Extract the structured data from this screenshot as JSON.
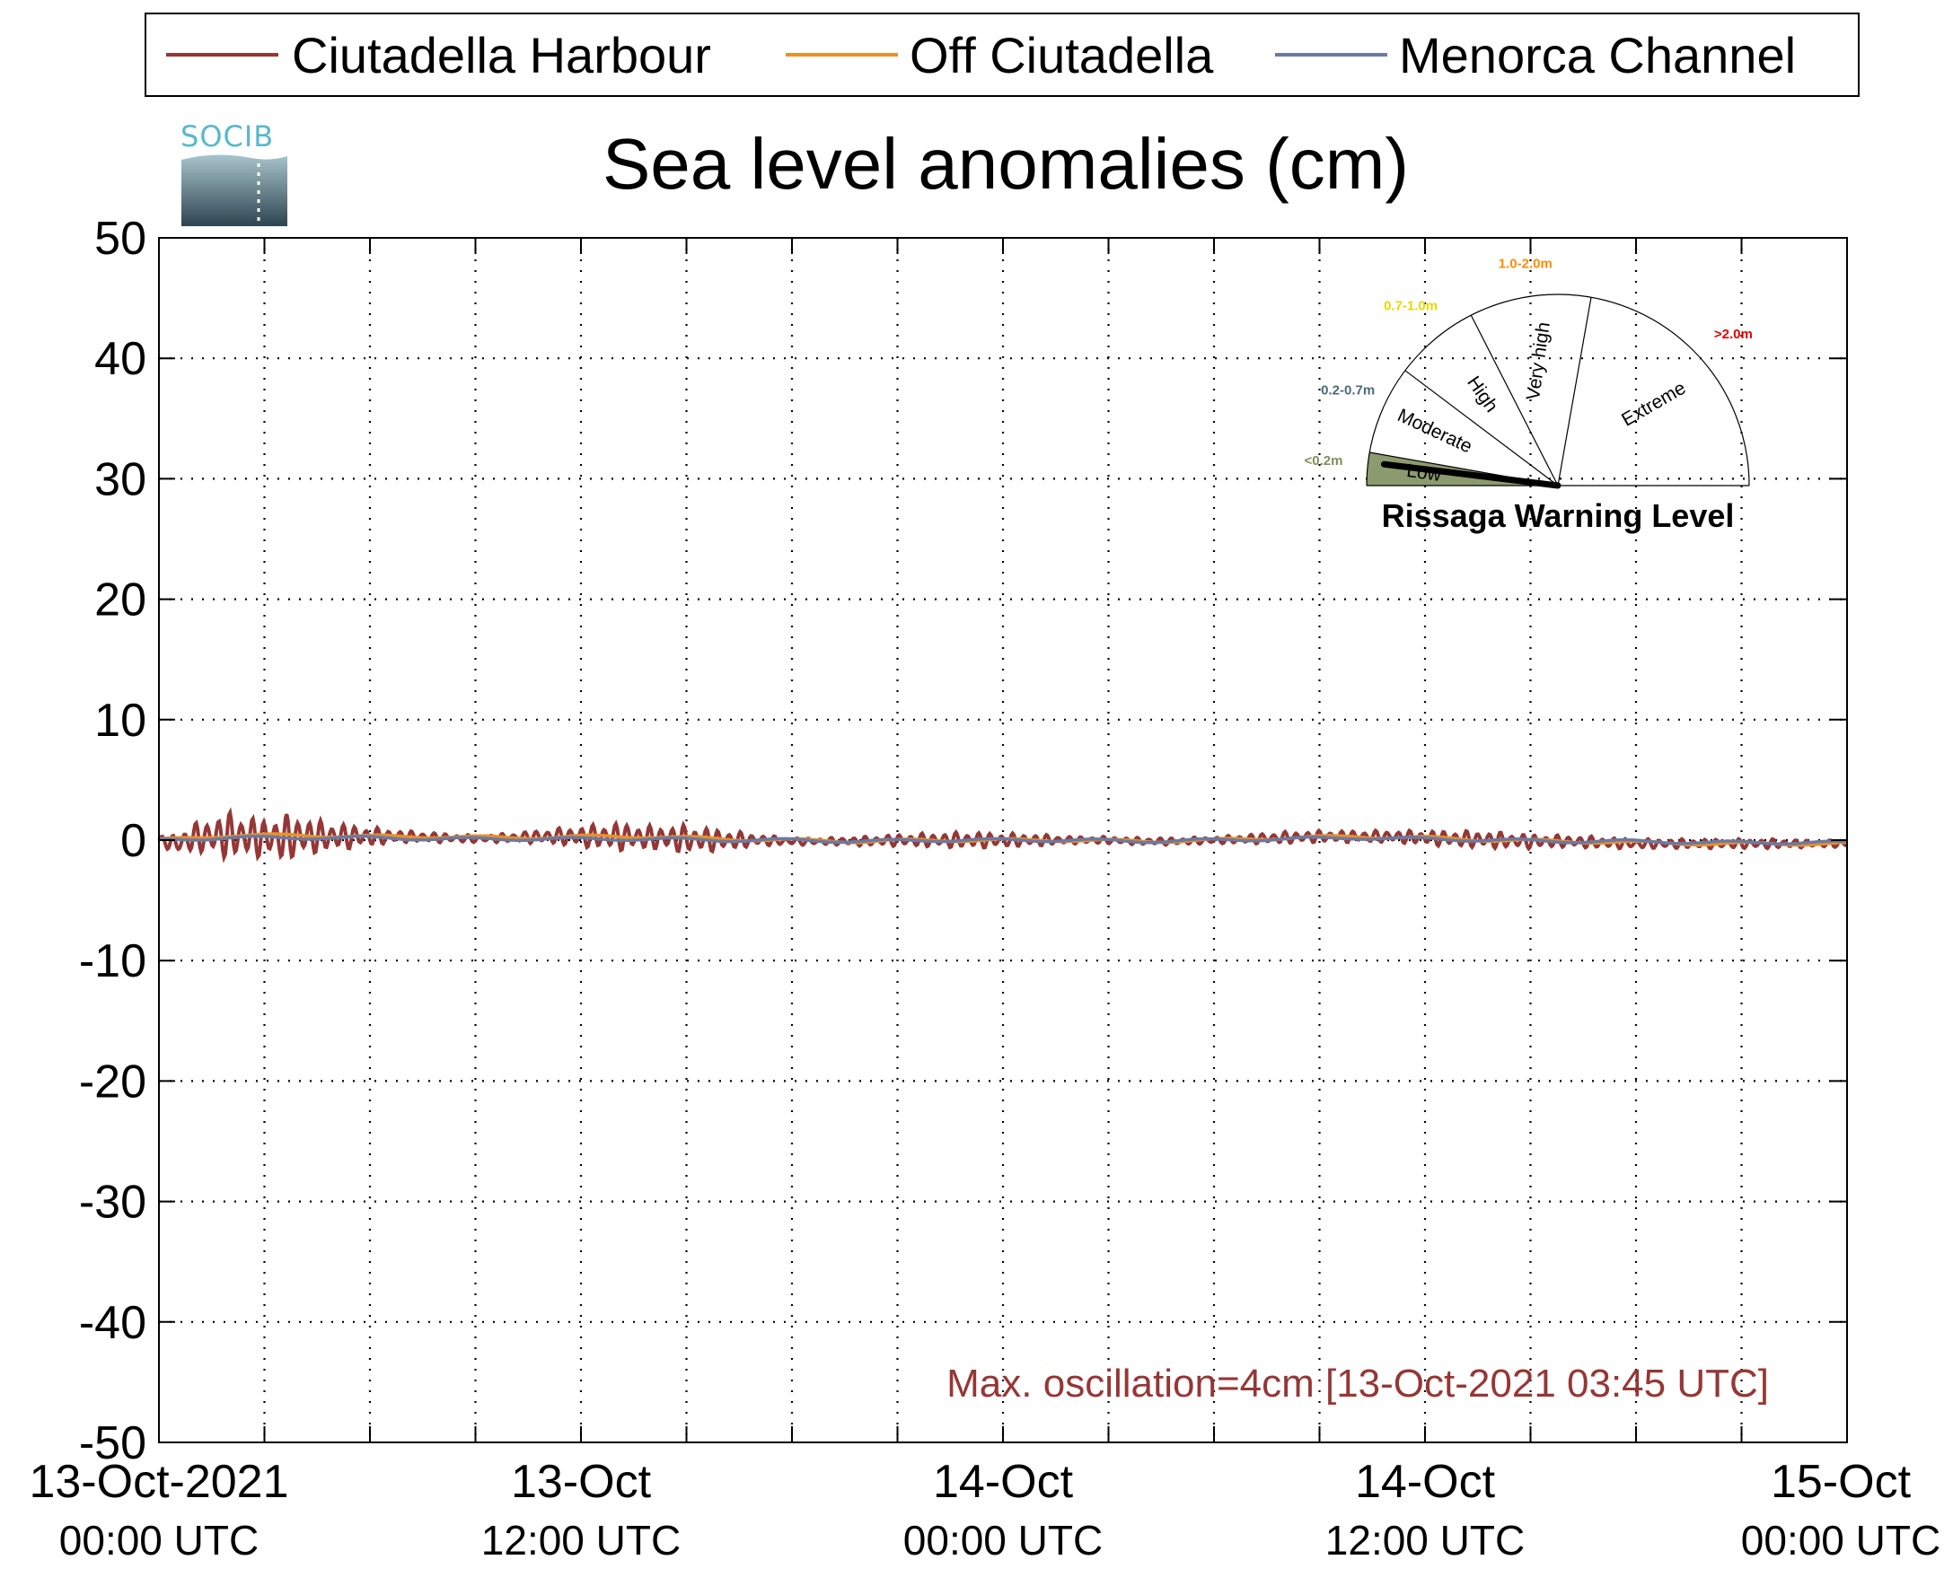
{
  "colors": {
    "harbour": "#953735",
    "off": "#e8912b",
    "channel": "#6b7aa3",
    "annotation": "#953735",
    "gauge_low_fill": "#8c9a70",
    "range_low": "#7f8f5a",
    "range_moderate": "#4a6a7a",
    "range_high": "#e8d800",
    "range_veryhigh": "#ff8c00",
    "range_extreme": "#e00000"
  },
  "logo": {
    "text": "SOCIB"
  },
  "chart_data": {
    "type": "line",
    "title": "Sea level anomalies (cm)",
    "xlabel": "",
    "ylabel": "",
    "ylim": [
      -50,
      50
    ],
    "xlim_hours": [
      0,
      48
    ],
    "grid": true,
    "legend_position": "top",
    "yticks": [
      "50",
      "40",
      "30",
      "20",
      "10",
      "0",
      "-10",
      "-20",
      "-30",
      "-40",
      "-50"
    ],
    "yvalues": [
      50,
      40,
      30,
      20,
      10,
      0,
      -10,
      -20,
      -30,
      -40,
      -50
    ],
    "xticks": [
      {
        "hour": 0,
        "line1": "13-Oct-2021",
        "line2": "00:00 UTC"
      },
      {
        "hour": 12,
        "line1": "13-Oct",
        "line2": "12:00 UTC"
      },
      {
        "hour": 24,
        "line1": "14-Oct",
        "line2": "00:00 UTC"
      },
      {
        "hour": 36,
        "line1": "14-Oct",
        "line2": "12:00 UTC"
      },
      {
        "hour": 48,
        "line1": "15-Oct",
        "line2": "00:00 UTC"
      }
    ],
    "series": [
      {
        "name": "Ciutadella Harbour",
        "hours": [
          0,
          0.5,
          1,
          1.5,
          2,
          2.5,
          3,
          3.5,
          4,
          4.5,
          5,
          5.5,
          6,
          7,
          8,
          9,
          10,
          11,
          12,
          13,
          14,
          15,
          16,
          17,
          18,
          19,
          20,
          21,
          22,
          23,
          24,
          25,
          26,
          27,
          28,
          29,
          30,
          31,
          32,
          33,
          34,
          35,
          36,
          37,
          38,
          39,
          40,
          41,
          42,
          43,
          44,
          45,
          46,
          47,
          48
        ],
        "amplitude": [
          0.3,
          0.9,
          1.2,
          1.6,
          2.0,
          1.8,
          1.6,
          2.0,
          1.8,
          1.4,
          1.2,
          1.0,
          0.8,
          0.5,
          0.4,
          0.3,
          0.4,
          0.6,
          0.9,
          1.2,
          1.0,
          1.2,
          0.9,
          0.5,
          0.3,
          0.3,
          0.4,
          0.5,
          0.6,
          0.7,
          0.6,
          0.5,
          0.3,
          0.3,
          0.3,
          0.3,
          0.3,
          0.4,
          0.5,
          0.5,
          0.5,
          0.5,
          0.6,
          0.7,
          0.7,
          0.6,
          0.5,
          0.5,
          0.4,
          0.4,
          0.4,
          0.4,
          0.4,
          0.3,
          0.3
        ],
        "mean": [
          0,
          -0.3,
          0.2,
          0.3,
          0.4,
          0.3,
          0.2,
          0.2,
          0.3,
          0.3,
          0.3,
          0.3,
          0.3,
          0.3,
          0.2,
          0.1,
          0.2,
          0.3,
          0.3,
          0.3,
          0.2,
          0.1,
          0.0,
          0.0,
          -0.1,
          -0.1,
          -0.1,
          0.0,
          0.0,
          0.0,
          0.0,
          0.0,
          0.0,
          0.0,
          -0.1,
          -0.1,
          0.0,
          0.1,
          0.2,
          0.3,
          0.3,
          0.3,
          0.2,
          0.1,
          0.0,
          -0.1,
          -0.1,
          -0.2,
          -0.3,
          -0.3,
          -0.3,
          -0.3,
          -0.3,
          -0.3,
          -0.3
        ]
      },
      {
        "name": "Off Ciutadella",
        "hours": [
          0,
          2,
          4,
          6,
          8,
          10,
          12,
          14,
          16,
          18,
          20,
          22,
          24,
          26,
          28,
          30,
          32,
          34,
          36,
          38,
          40,
          42,
          44,
          46,
          48
        ],
        "values": [
          0,
          0.4,
          0.4,
          0.3,
          0.3,
          0.2,
          0.3,
          0.3,
          0.1,
          0,
          -0.1,
          0,
          0,
          0,
          -0.1,
          0,
          0.2,
          0.3,
          0.2,
          0,
          -0.1,
          -0.2,
          -0.3,
          -0.3,
          -0.3
        ]
      },
      {
        "name": "Menorca Channel",
        "hours": [
          0,
          2,
          4,
          6,
          8,
          10,
          12,
          14,
          16,
          18,
          20,
          22,
          24,
          26,
          28,
          30,
          32,
          34,
          36,
          38,
          40,
          42,
          44,
          46,
          48
        ],
        "values": [
          0,
          0.2,
          0.2,
          0.2,
          0.1,
          0.1,
          0.1,
          0.1,
          0,
          0,
          -0.1,
          0,
          0,
          0,
          -0.1,
          0,
          0.1,
          0.2,
          0.1,
          0,
          -0.1,
          -0.1,
          -0.2,
          -0.2,
          -0.2
        ]
      }
    ],
    "annotation": "Max. oscillation=4cm [13-Oct-2021 03:45 UTC]"
  },
  "gauge": {
    "title": "Rissaga Warning Level",
    "current_level": "Low",
    "sectors": [
      {
        "label": "Low",
        "range": "<0.2m"
      },
      {
        "label": "Moderate",
        "range": "0.2-0.7m"
      },
      {
        "label": "High",
        "range": "0.7-1.0m"
      },
      {
        "label": "Very high",
        "range": "1.0-2.0m"
      },
      {
        "label": "Extreme",
        "range": ">2.0m"
      }
    ]
  }
}
